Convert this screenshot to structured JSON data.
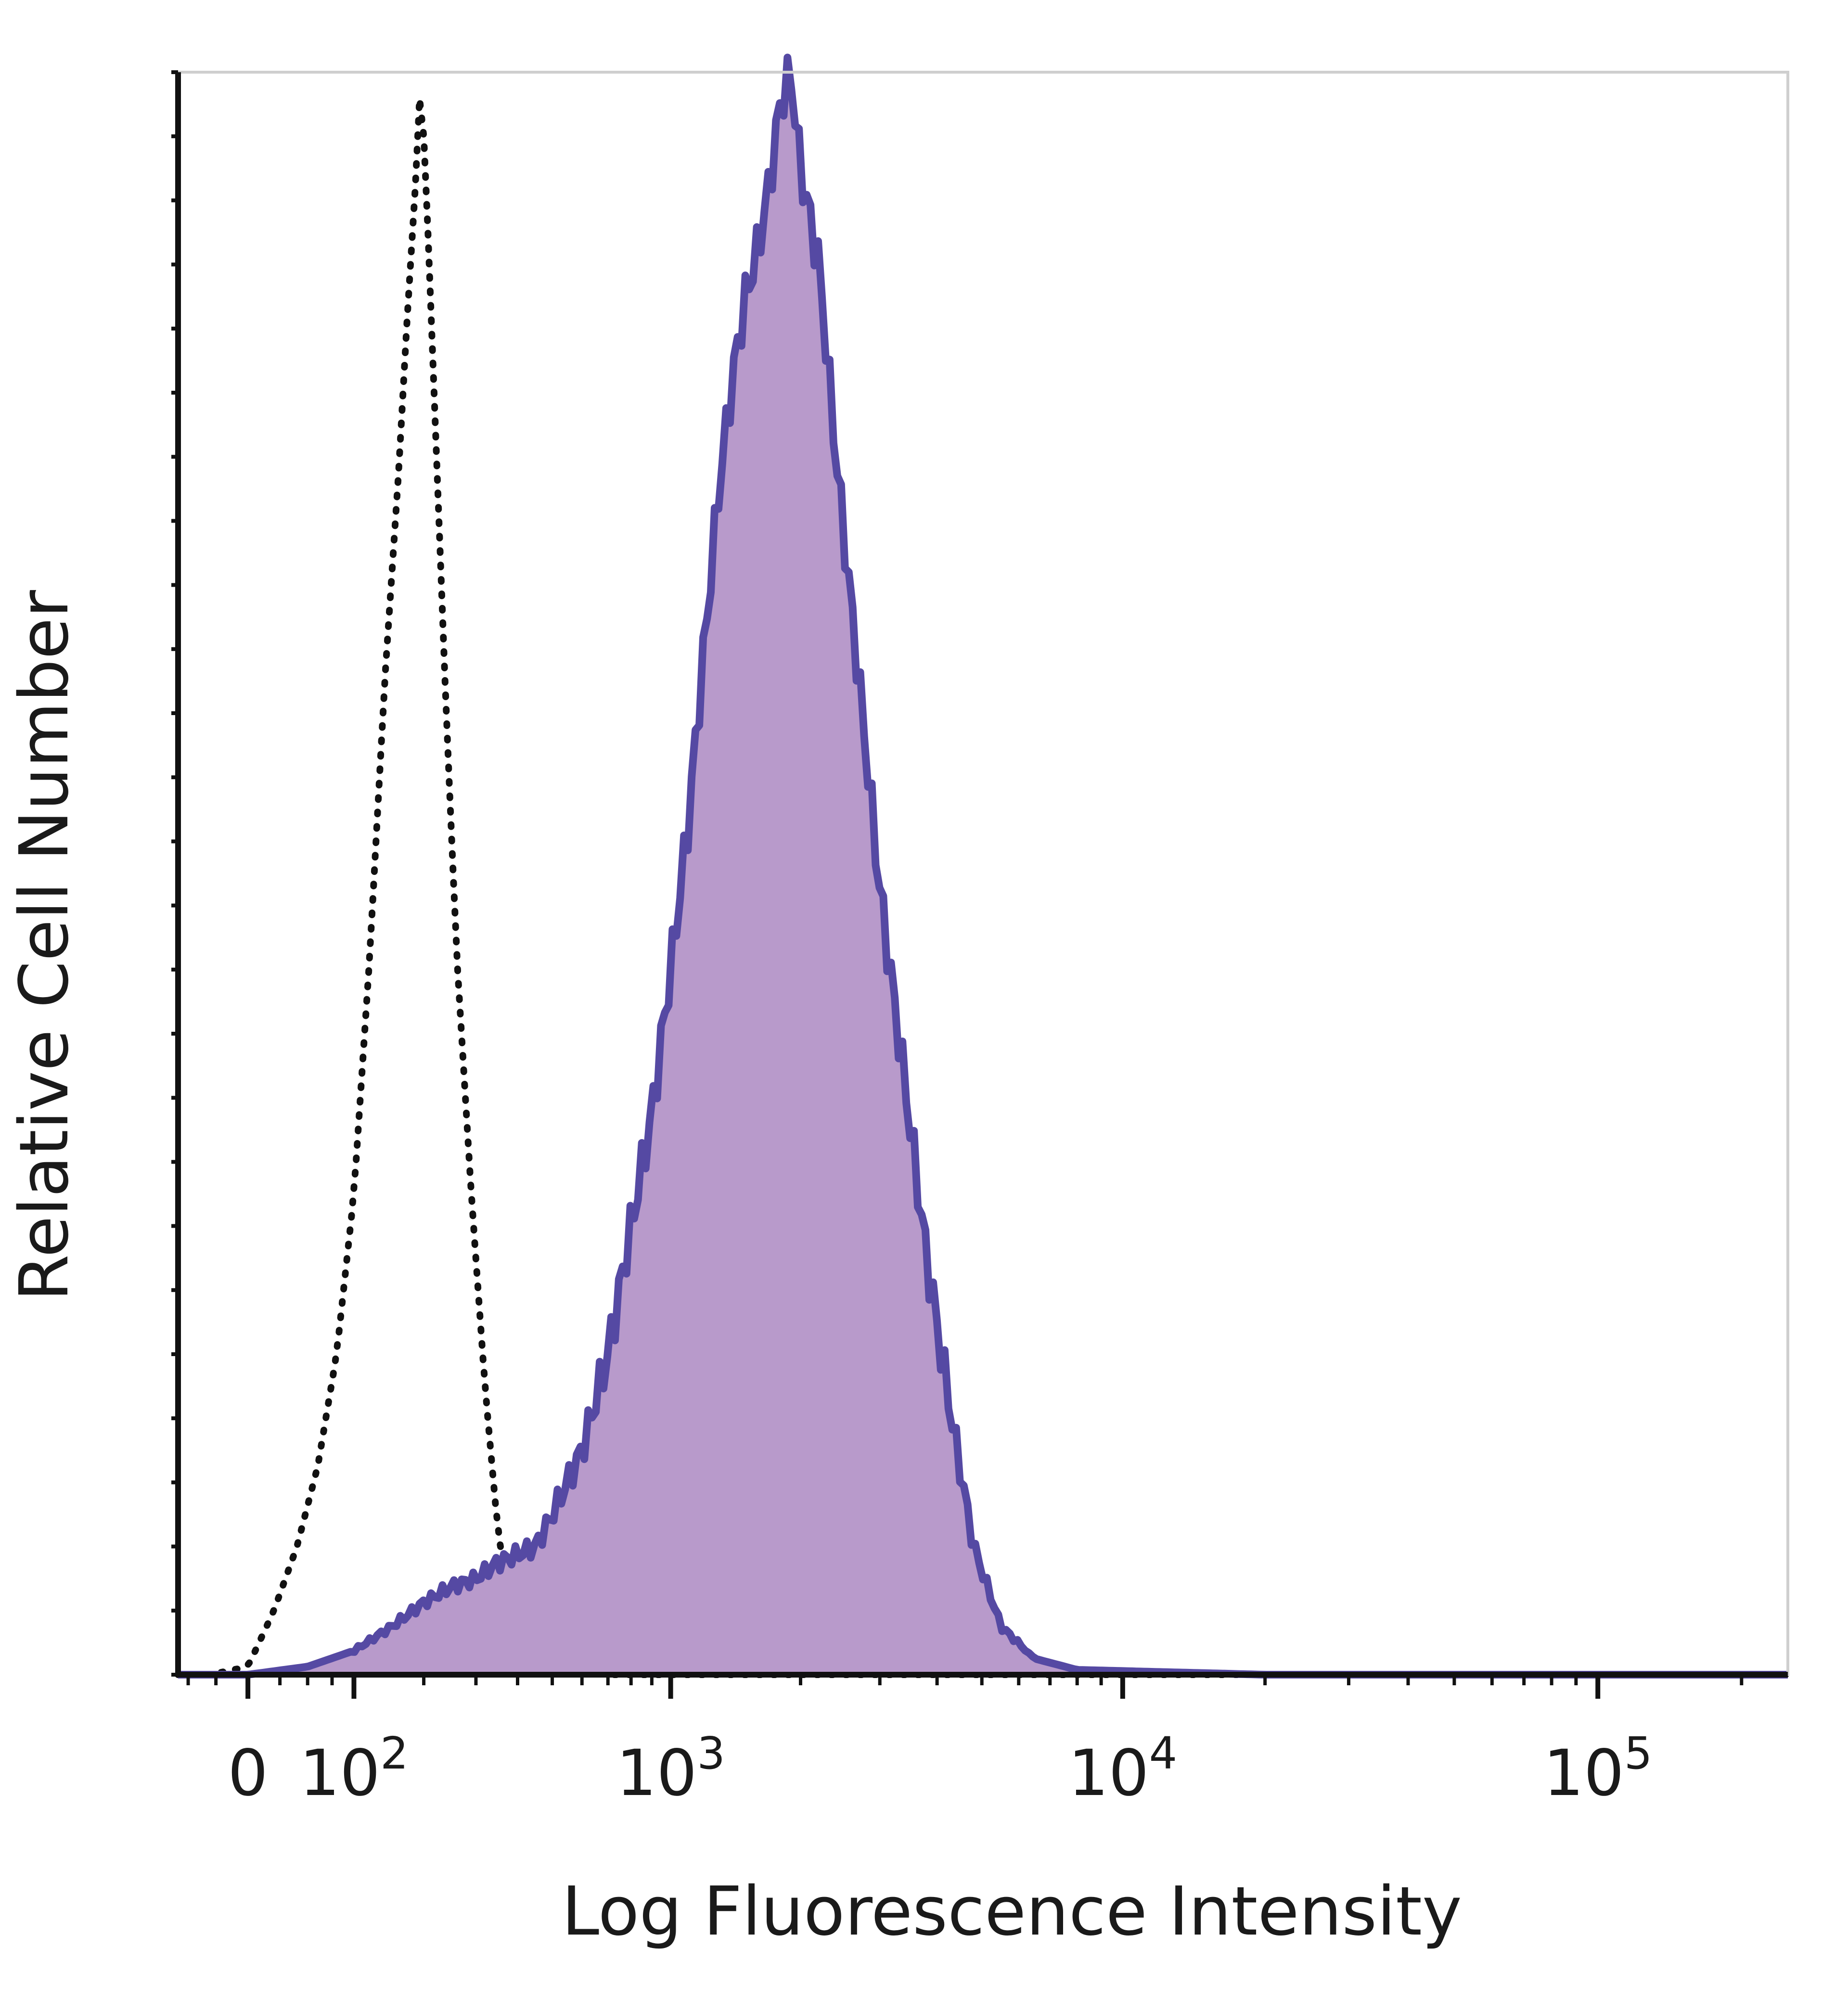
{
  "chart_data": {
    "type": "area",
    "xlabel": "Log Fluorescence Intensity",
    "ylabel": "Relative Cell Number",
    "x_scale": "biexponential",
    "x_ticks": [
      {
        "value": 0,
        "label": "0",
        "exp": ""
      },
      {
        "value": 100,
        "label": "10",
        "exp": "2"
      },
      {
        "value": 1000,
        "label": "10",
        "exp": "3"
      },
      {
        "value": 10000,
        "label": "10",
        "exp": "4"
      },
      {
        "value": 100000,
        "label": "10",
        "exp": "5"
      }
    ],
    "xlim": [
      -60,
      250000
    ],
    "ylim": [
      0,
      100
    ],
    "grid": false,
    "series": [
      {
        "style": "dotted",
        "color": "#111111",
        "x": [
          -60,
          -30,
          0,
          20,
          40,
          60,
          80,
          100,
          120,
          140,
          160,
          175,
          185,
          195,
          205,
          220,
          240,
          260,
          290,
          320,
          350,
          390,
          450,
          550,
          700,
          1000,
          2000,
          5000,
          20000,
          100000,
          250000
        ],
        "y": [
          0,
          0,
          0.5,
          4,
          8,
          13,
          20,
          30,
          45,
          62,
          75,
          86,
          92,
          100,
          92,
          78,
          60,
          45,
          30,
          18,
          9,
          3,
          1,
          0.3,
          0,
          0,
          0,
          0,
          0,
          0,
          0
        ]
      },
      {
        "style": "filled",
        "color": "#5549a3",
        "fill": "#b89acb",
        "x": [
          -60,
          0,
          50,
          100,
          150,
          200,
          250,
          300,
          350,
          400,
          450,
          500,
          600,
          700,
          800,
          900,
          1000,
          1100,
          1200,
          1300,
          1400,
          1500,
          1600,
          1700,
          1800,
          1900,
          2000,
          2200,
          2400,
          2700,
          3000,
          3400,
          3800,
          4300,
          4800,
          5500,
          6500,
          8000,
          20000,
          100000,
          250000
        ],
        "y": [
          0,
          0,
          0.5,
          1.5,
          3,
          4.5,
          5.5,
          6,
          7,
          7.5,
          8,
          10,
          14,
          20,
          28,
          35,
          44,
          53,
          64,
          74,
          81,
          86,
          89,
          93,
          98,
          100,
          94,
          88,
          76,
          62,
          49,
          37,
          26,
          16,
          8,
          3,
          1,
          0.3,
          0,
          0,
          0
        ]
      }
    ]
  }
}
